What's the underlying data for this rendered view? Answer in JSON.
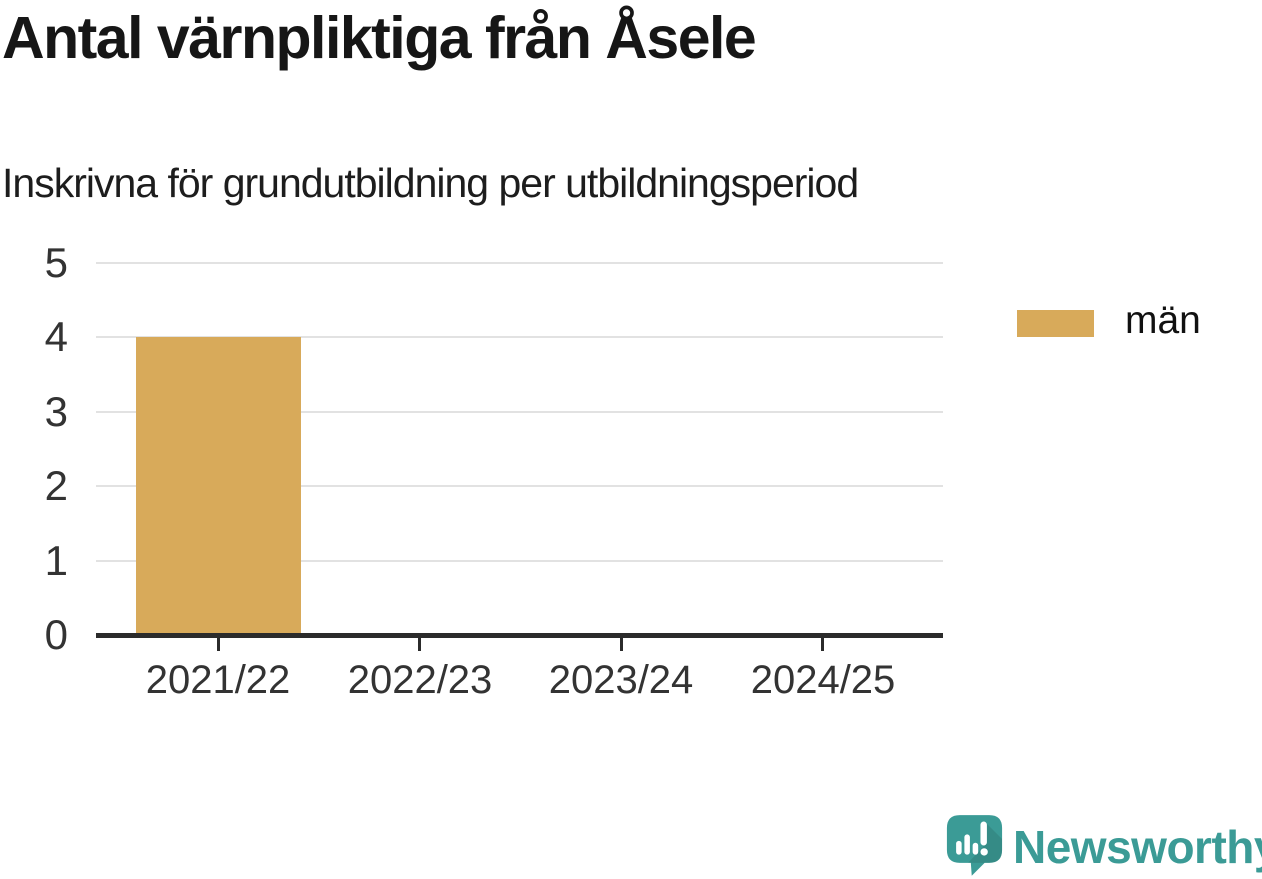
{
  "chart_data": {
    "type": "bar",
    "title": "Antal värnpliktiga från Åsele",
    "subtitle": "Inskrivna för grundutbildning per utbildningsperiod",
    "categories": [
      "2021/22",
      "2022/23",
      "2023/24",
      "2024/25"
    ],
    "series": [
      {
        "name": "män",
        "color": "#d8aa5a",
        "values": [
          4,
          null,
          null,
          null
        ]
      }
    ],
    "xlabel": "",
    "ylabel": "",
    "ylim": [
      0,
      5
    ],
    "yticks": [
      0,
      1,
      2,
      3,
      4,
      5
    ],
    "grid": true,
    "legend_position": "right-of-plot"
  },
  "legend": {
    "items": [
      {
        "label": "män",
        "color": "#d8aa5a"
      }
    ]
  },
  "footer": {
    "brand": "Newsworthy",
    "logo_icon": "newsworthy-speech-bubble-bar-chart-icon"
  },
  "colors": {
    "bar": "#d8aa5a",
    "axis_line": "#2b2b2b",
    "grid_line": "#e2e2e2",
    "axis_text": "#333333",
    "title_text": "#161616",
    "brand_teal": "#3b9b96",
    "background": "#ffffff"
  }
}
